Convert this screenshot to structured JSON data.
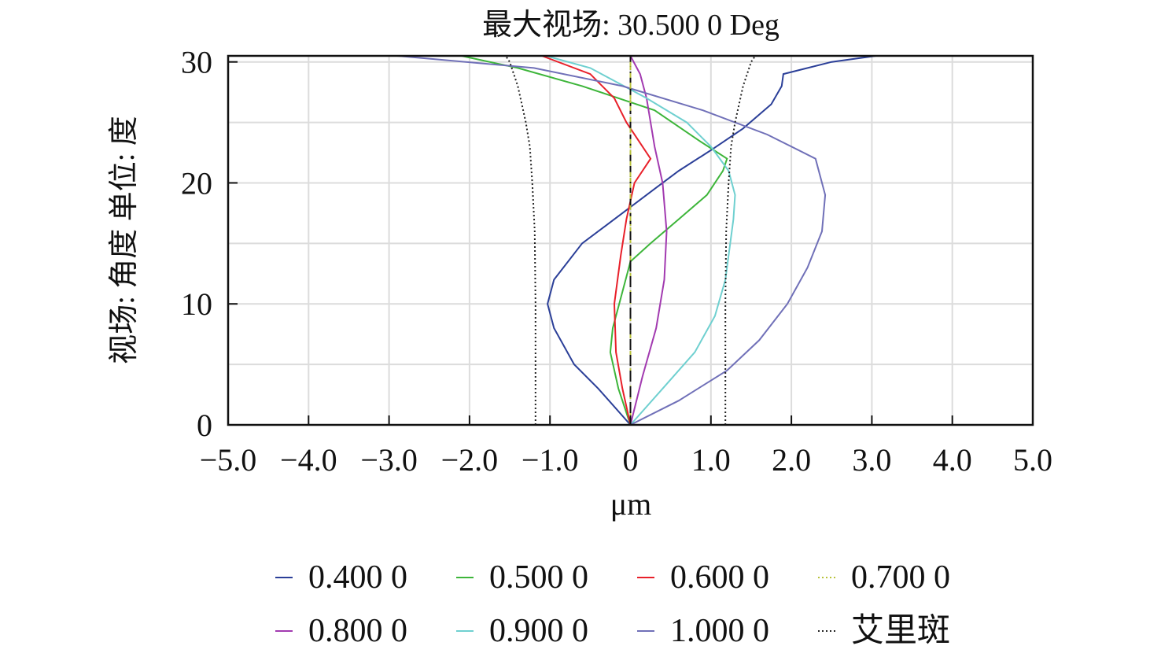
{
  "chart_data": {
    "type": "line",
    "title": "最大视场: 30.500 0 Deg",
    "xlabel": "μm",
    "ylabel": "视场: 角度 单位: 度",
    "xlim": [
      -5.0,
      5.0
    ],
    "ylim": [
      0,
      30.5
    ],
    "x_ticks": [
      "−5.0",
      "−4.0",
      "−3.0",
      "−2.0",
      "−1.0",
      "0",
      "1.0",
      "2.0",
      "3.0",
      "4.0",
      "5.0"
    ],
    "x_tick_values": [
      -5,
      -4,
      -3,
      -2,
      -1,
      0,
      1,
      2,
      3,
      4,
      5
    ],
    "y_ticks": [
      "0",
      "10",
      "20",
      "30"
    ],
    "y_tick_values": [
      0,
      10,
      20,
      30
    ],
    "grid": true,
    "legend_position": "bottom",
    "series": [
      {
        "name": "0.400 0",
        "color": "#2b3f98",
        "dash": "none",
        "points": [
          [
            0,
            0
          ],
          [
            -0.4,
            3
          ],
          [
            -0.7,
            5
          ],
          [
            -0.95,
            8
          ],
          [
            -1.03,
            10
          ],
          [
            -0.95,
            12
          ],
          [
            -0.6,
            15
          ],
          [
            -0.3,
            16.5
          ],
          [
            0,
            18
          ],
          [
            0.3,
            19.5
          ],
          [
            0.6,
            21
          ],
          [
            1.0,
            22.7
          ],
          [
            1.4,
            24.5
          ],
          [
            1.75,
            26.5
          ],
          [
            1.88,
            28
          ],
          [
            1.9,
            29
          ],
          [
            2.5,
            30
          ],
          [
            3.05,
            30.5
          ]
        ]
      },
      {
        "name": "0.500 0",
        "color": "#3db53a",
        "dash": "none",
        "points": [
          [
            0,
            0
          ],
          [
            -0.15,
            3
          ],
          [
            -0.25,
            6
          ],
          [
            -0.22,
            8
          ],
          [
            -0.1,
            11
          ],
          [
            0,
            13.5
          ],
          [
            0.25,
            15
          ],
          [
            0.6,
            17
          ],
          [
            0.95,
            19
          ],
          [
            1.15,
            21
          ],
          [
            1.2,
            22
          ],
          [
            0.85,
            23.5
          ],
          [
            0.3,
            26
          ],
          [
            -0.6,
            28
          ],
          [
            -1.4,
            29.5
          ],
          [
            -2.1,
            30.5
          ]
        ]
      },
      {
        "name": "0.600 0",
        "color": "#e8202a",
        "dash": "none",
        "points": [
          [
            0,
            0
          ],
          [
            -0.1,
            3
          ],
          [
            -0.18,
            6
          ],
          [
            -0.2,
            10
          ],
          [
            -0.12,
            14
          ],
          [
            -0.05,
            17
          ],
          [
            0,
            18.5
          ],
          [
            0.05,
            20
          ],
          [
            0.25,
            22
          ],
          [
            0.1,
            23.5
          ],
          [
            -0.05,
            25
          ],
          [
            -0.2,
            27
          ],
          [
            -0.5,
            29
          ],
          [
            -1.1,
            30.5
          ]
        ]
      },
      {
        "name": "0.700 0",
        "color": "#b8c23a",
        "dash": "6,5",
        "points": [
          [
            0,
            0
          ],
          [
            0,
            30.5
          ]
        ]
      },
      {
        "name": "0.800 0",
        "color": "#a23ab0",
        "dash": "none",
        "points": [
          [
            0,
            0
          ],
          [
            0.15,
            4
          ],
          [
            0.32,
            8
          ],
          [
            0.42,
            12
          ],
          [
            0.45,
            16
          ],
          [
            0.4,
            20
          ],
          [
            0.3,
            23
          ],
          [
            0.2,
            27
          ],
          [
            0.12,
            29
          ],
          [
            0,
            30.5
          ]
        ]
      },
      {
        "name": "0.900 0",
        "color": "#6fd0d0",
        "dash": "none",
        "points": [
          [
            0,
            0
          ],
          [
            0.4,
            3
          ],
          [
            0.8,
            6
          ],
          [
            1.05,
            9
          ],
          [
            1.18,
            12
          ],
          [
            1.28,
            17
          ],
          [
            1.3,
            19
          ],
          [
            1.22,
            21
          ],
          [
            1.0,
            23
          ],
          [
            0.7,
            25
          ],
          [
            0.2,
            27
          ],
          [
            -0.5,
            29.5
          ],
          [
            -1.05,
            30.5
          ]
        ]
      },
      {
        "name": "1.000 0",
        "color": "#7070b8",
        "dash": "none",
        "points": [
          [
            0,
            0
          ],
          [
            0.6,
            2
          ],
          [
            1.2,
            4.5
          ],
          [
            1.6,
            7
          ],
          [
            1.95,
            10
          ],
          [
            2.2,
            13
          ],
          [
            2.38,
            16
          ],
          [
            2.42,
            19
          ],
          [
            2.3,
            22
          ],
          [
            1.7,
            24
          ],
          [
            0.9,
            26
          ],
          [
            -0.1,
            28
          ],
          [
            -1.2,
            29.5
          ],
          [
            -2.9,
            30.5
          ]
        ]
      },
      {
        "name": "艾里斑",
        "color": "#222222",
        "dash": "2,3",
        "mirror": true,
        "points": [
          [
            1.18,
            0
          ],
          [
            1.18,
            10
          ],
          [
            1.19,
            16
          ],
          [
            1.22,
            20
          ],
          [
            1.25,
            23
          ],
          [
            1.3,
            25
          ],
          [
            1.4,
            28
          ],
          [
            1.5,
            30
          ],
          [
            1.55,
            30.5
          ]
        ]
      }
    ]
  }
}
